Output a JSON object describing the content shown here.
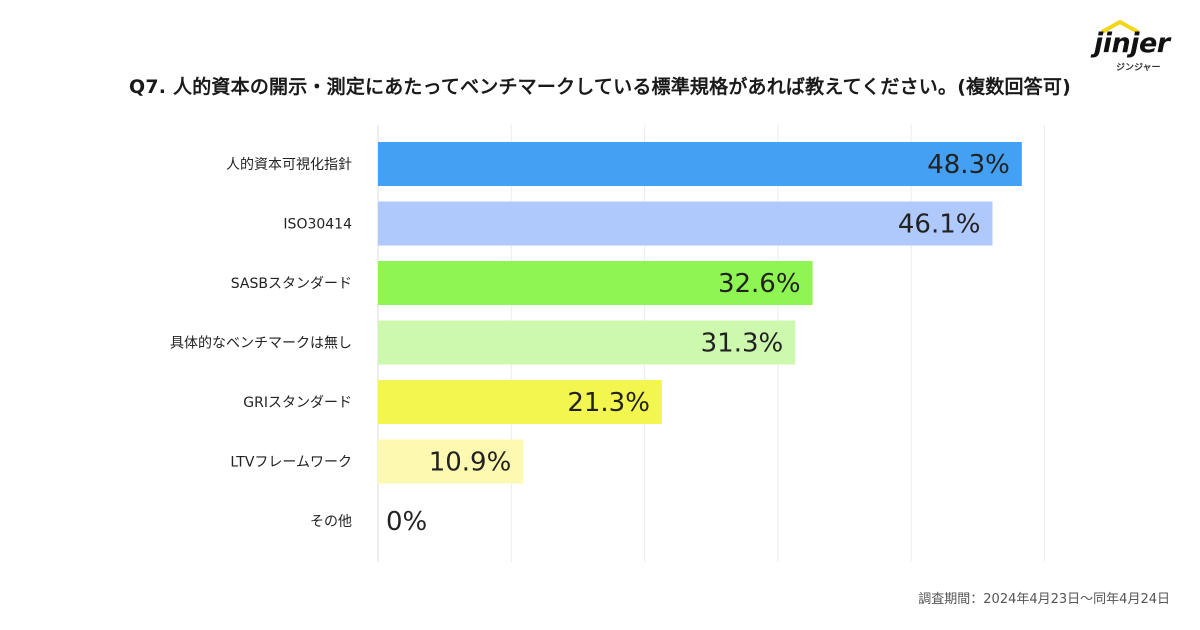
{
  "title": "Q7. 人的資本の開示・測定にあたってベンチマークしている標準規格があれば教えてください。(複数回答可)",
  "logo": {
    "word": "jinjer",
    "sub": "ジンジャー"
  },
  "footnote": "調査期間：2024年4月23日〜同年4月24日",
  "chart_data": {
    "type": "bar",
    "orientation": "horizontal",
    "categories": [
      "人的資本可視化指針",
      "ISO30414",
      "SASBスタンダード",
      "具体的なベンチマークは無し",
      "GRIスタンダード",
      "LTVフレームワーク",
      "その他"
    ],
    "values": [
      48.3,
      46.1,
      32.6,
      31.3,
      21.3,
      10.9,
      0
    ],
    "value_labels": [
      "48.3%",
      "46.1%",
      "32.6%",
      "31.3%",
      "21.3%",
      "10.9%",
      "0%"
    ],
    "colors": [
      "#44a0f2",
      "#b0c9fc",
      "#8ef553",
      "#cdf9ae",
      "#f3f64e",
      "#fdf9b0",
      "#ffffff"
    ],
    "xlim": [
      0,
      50
    ],
    "grid": true
  }
}
